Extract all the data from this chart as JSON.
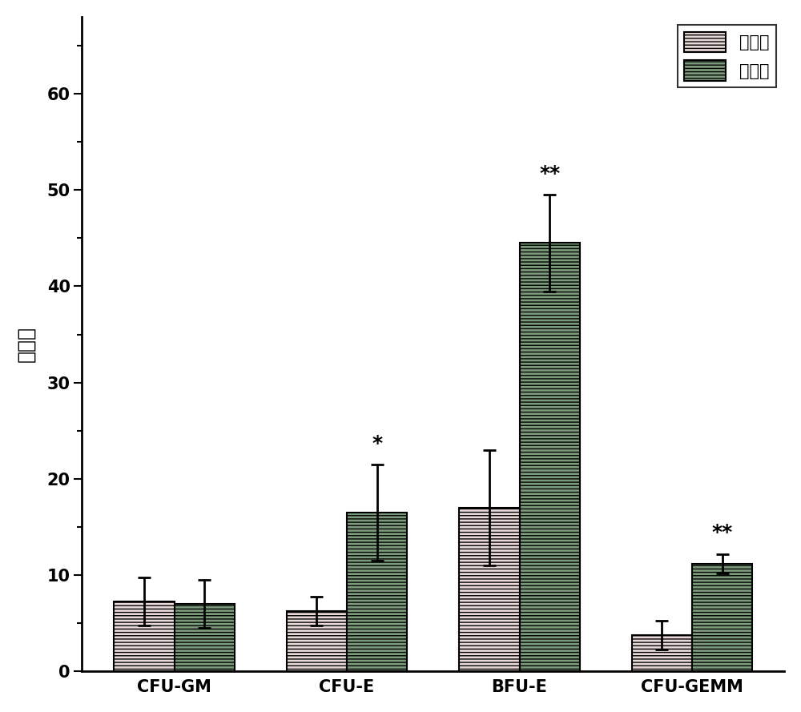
{
  "categories": [
    "CFU-GM",
    "CFU-E",
    "BFU-E",
    "CFU-GEMM"
  ],
  "control_values": [
    7.3,
    6.3,
    17.0,
    3.8
  ],
  "drug_values": [
    7.0,
    16.5,
    44.5,
    11.2
  ],
  "control_errors": [
    2.5,
    1.5,
    6.0,
    1.5
  ],
  "drug_errors": [
    2.5,
    5.0,
    5.0,
    1.0
  ],
  "significance": [
    "",
    "*",
    "**",
    "**"
  ],
  "control_color": "#e8d8d8",
  "drug_color": "#7a9a7a",
  "control_label": "对照组",
  "drug_label": "给药组",
  "ylabel": "集落数",
  "ylim": [
    0,
    68
  ],
  "yticks": [
    0,
    10,
    20,
    30,
    40,
    50,
    60
  ],
  "bar_width": 0.35,
  "xlabel_fontsize": 15,
  "ylabel_fontsize": 18,
  "tick_fontsize": 15,
  "legend_fontsize": 15,
  "sig_fontsize": 18,
  "edgecolor": "#000000",
  "background_color": "#ffffff",
  "figsize": [
    10.0,
    8.89
  ],
  "dpi": 100
}
